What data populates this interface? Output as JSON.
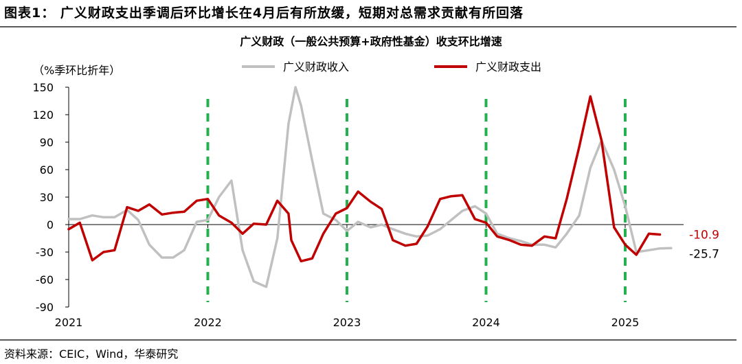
{
  "figure_title": "图表1： 广义财政支出季调后环比增长在4月后有所放缓，短期对总需求贡献有所回落",
  "source_text": "资料来源：CEIC，Wind，华泰研究",
  "chart_data": {
    "type": "line",
    "title": "广义财政（一般公共预算+政府性基金）收支环比增速",
    "ylabel": "（%季环比折年）",
    "ylim": [
      -90,
      150
    ],
    "yticks": [
      -90,
      -60,
      -30,
      0,
      30,
      60,
      90,
      120,
      150
    ],
    "xlim": [
      2021.0,
      2025.42
    ],
    "xticks": [
      2021,
      2022,
      2023,
      2024,
      2025
    ],
    "xtick_labels": [
      "2021",
      "2022",
      "2023",
      "2024",
      "2025"
    ],
    "legend_position": "top",
    "vertical_markers": [
      2022.0,
      2023.0,
      2024.0,
      2025.0
    ],
    "vertical_marker_color": "#22b14c",
    "series": [
      {
        "name": "广义财政收入",
        "color": "#c0c0c0",
        "end_label": "-25.7",
        "points": [
          [
            2021.0,
            6
          ],
          [
            2021.08,
            6
          ],
          [
            2021.17,
            10
          ],
          [
            2021.25,
            8
          ],
          [
            2021.33,
            8
          ],
          [
            2021.42,
            16
          ],
          [
            2021.5,
            5
          ],
          [
            2021.58,
            -22
          ],
          [
            2021.67,
            -36
          ],
          [
            2021.75,
            -36
          ],
          [
            2021.83,
            -28
          ],
          [
            2021.92,
            3
          ],
          [
            2022.0,
            5
          ],
          [
            2022.08,
            30
          ],
          [
            2022.17,
            48
          ],
          [
            2022.25,
            -28
          ],
          [
            2022.33,
            -62
          ],
          [
            2022.42,
            -68
          ],
          [
            2022.5,
            -15
          ],
          [
            2022.58,
            110
          ],
          [
            2022.63,
            150
          ],
          [
            2022.67,
            130
          ],
          [
            2022.75,
            70
          ],
          [
            2022.83,
            12
          ],
          [
            2022.92,
            5
          ],
          [
            2023.0,
            -7
          ],
          [
            2023.08,
            3
          ],
          [
            2023.17,
            -3
          ],
          [
            2023.25,
            0
          ],
          [
            2023.33,
            -5
          ],
          [
            2023.42,
            -10
          ],
          [
            2023.5,
            -13
          ],
          [
            2023.58,
            -12
          ],
          [
            2023.67,
            -5
          ],
          [
            2023.75,
            5
          ],
          [
            2023.83,
            15
          ],
          [
            2023.92,
            20
          ],
          [
            2024.0,
            12
          ],
          [
            2024.08,
            -10
          ],
          [
            2024.17,
            -15
          ],
          [
            2024.25,
            -18
          ],
          [
            2024.33,
            -22
          ],
          [
            2024.42,
            -22
          ],
          [
            2024.5,
            -25
          ],
          [
            2024.58,
            -10
          ],
          [
            2024.67,
            10
          ],
          [
            2024.75,
            62
          ],
          [
            2024.83,
            92
          ],
          [
            2024.92,
            60
          ],
          [
            2025.0,
            20
          ],
          [
            2025.08,
            -30
          ],
          [
            2025.17,
            -28
          ],
          [
            2025.25,
            -26
          ],
          [
            2025.33,
            -25.7
          ]
        ]
      },
      {
        "name": "广义财政支出",
        "color": "#c00000",
        "end_label": "-10.9",
        "points": [
          [
            2021.0,
            -5
          ],
          [
            2021.08,
            2
          ],
          [
            2021.17,
            -39
          ],
          [
            2021.25,
            -30
          ],
          [
            2021.33,
            -28
          ],
          [
            2021.42,
            19
          ],
          [
            2021.5,
            15
          ],
          [
            2021.58,
            22
          ],
          [
            2021.67,
            11
          ],
          [
            2021.75,
            13
          ],
          [
            2021.83,
            14
          ],
          [
            2021.92,
            26
          ],
          [
            2022.0,
            28
          ],
          [
            2022.08,
            10
          ],
          [
            2022.17,
            2
          ],
          [
            2022.25,
            -10
          ],
          [
            2022.33,
            1
          ],
          [
            2022.42,
            0
          ],
          [
            2022.5,
            26
          ],
          [
            2022.58,
            12
          ],
          [
            2022.6,
            -17
          ],
          [
            2022.67,
            -40
          ],
          [
            2022.75,
            -37
          ],
          [
            2022.83,
            -10
          ],
          [
            2022.92,
            12
          ],
          [
            2023.0,
            18
          ],
          [
            2023.08,
            36
          ],
          [
            2023.17,
            25
          ],
          [
            2023.25,
            17
          ],
          [
            2023.33,
            -17
          ],
          [
            2023.42,
            -23
          ],
          [
            2023.5,
            -21
          ],
          [
            2023.58,
            -2
          ],
          [
            2023.67,
            28
          ],
          [
            2023.75,
            31
          ],
          [
            2023.83,
            32
          ],
          [
            2023.92,
            6
          ],
          [
            2024.0,
            2
          ],
          [
            2024.08,
            -13
          ],
          [
            2024.17,
            -17
          ],
          [
            2024.25,
            -22
          ],
          [
            2024.33,
            -23
          ],
          [
            2024.42,
            -13
          ],
          [
            2024.5,
            -15
          ],
          [
            2024.58,
            28
          ],
          [
            2024.67,
            85
          ],
          [
            2024.75,
            140
          ],
          [
            2024.83,
            92
          ],
          [
            2024.92,
            -3
          ],
          [
            2025.0,
            -22
          ],
          [
            2025.08,
            -33
          ],
          [
            2025.17,
            -10
          ],
          [
            2025.25,
            -10.9
          ]
        ]
      }
    ]
  }
}
